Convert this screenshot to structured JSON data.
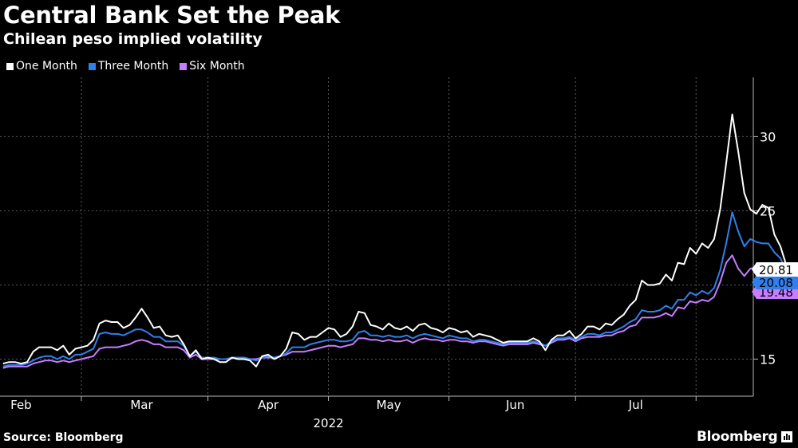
{
  "title": "Central Bank Set the Peak",
  "subtitle": "Chilean peso implied volatility",
  "source": "Source: Bloomberg",
  "brand": "Bloomberg",
  "colors": {
    "background": "#000000",
    "grid": "#5a5a5a",
    "one_month": "#ffffff",
    "three_month": "#2f80ed",
    "six_month": "#c77dff"
  },
  "chart_data": {
    "type": "line",
    "title": "Central Bank Set the Peak",
    "subtitle": "Chilean peso implied volatility",
    "xlabel": "2022",
    "ylabel": "",
    "ylim": [
      12.5,
      34
    ],
    "yticks": [
      15,
      20,
      25,
      30
    ],
    "ytick_labels": [
      "15",
      "20",
      "25",
      "30"
    ],
    "xticks": [
      3,
      23,
      44,
      64,
      85,
      105
    ],
    "xtick_labels": [
      "Feb",
      "Mar",
      "Apr",
      "May",
      "Jun",
      "Jul"
    ],
    "xlim": [
      -0.5,
      124.5
    ],
    "year_label": "2022",
    "legend_position": "top-left",
    "series": [
      {
        "name": "One Month",
        "color": "#ffffff",
        "last_label": "20.81",
        "values": [
          14.7,
          14.8,
          14.8,
          14.7,
          14.8,
          15.5,
          15.8,
          15.8,
          15.8,
          15.6,
          15.9,
          15.3,
          15.7,
          15.8,
          15.9,
          16.3,
          17.4,
          17.6,
          17.5,
          17.5,
          17.1,
          17.3,
          17.8,
          18.4,
          17.8,
          17.1,
          17.2,
          16.6,
          16.5,
          16.6,
          16.0,
          15.2,
          15.6,
          15.0,
          15.1,
          15.0,
          14.8,
          14.8,
          15.1,
          15.0,
          15.0,
          14.9,
          14.5,
          15.2,
          15.3,
          15.0,
          15.2,
          15.7,
          16.8,
          16.7,
          16.3,
          16.5,
          16.5,
          16.8,
          17.1,
          17.0,
          16.5,
          16.7,
          17.2,
          18.2,
          18.1,
          17.3,
          17.2,
          17.0,
          17.4,
          17.1,
          17.0,
          17.2,
          16.9,
          17.3,
          17.4,
          17.1,
          17.0,
          16.8,
          17.1,
          17.0,
          16.8,
          16.9,
          16.5,
          16.7,
          16.6,
          16.5,
          16.3,
          16.1,
          16.2,
          16.2,
          16.2,
          16.2,
          16.4,
          16.2,
          15.6,
          16.3,
          16.6,
          16.6,
          16.9,
          16.4,
          16.7,
          17.2,
          17.2,
          17.0,
          17.4,
          17.3,
          17.7,
          18.0,
          18.6,
          19.0,
          20.3,
          20.0,
          20.0,
          20.1,
          20.7,
          20.3,
          21.5,
          21.4,
          22.5,
          22.1,
          22.8,
          22.5,
          23.1,
          25.1,
          28.2,
          31.5,
          29.0,
          26.2,
          25.1,
          24.8,
          25.4,
          25.2,
          23.4,
          22.6,
          21.3,
          21.2,
          20.7,
          20.8
        ]
      },
      {
        "name": "Three Month",
        "color": "#2f80ed",
        "last_label": "20.08",
        "values": [
          14.5,
          14.6,
          14.6,
          14.6,
          14.7,
          14.9,
          15.1,
          15.2,
          15.2,
          15.0,
          15.2,
          15.0,
          15.3,
          15.3,
          15.5,
          15.7,
          16.7,
          16.8,
          16.7,
          16.7,
          16.6,
          16.8,
          17.0,
          17.0,
          16.8,
          16.5,
          16.5,
          16.2,
          16.2,
          16.2,
          15.9,
          15.2,
          15.5,
          15.1,
          15.1,
          15.1,
          15.0,
          15.0,
          15.1,
          15.1,
          15.1,
          15.0,
          14.9,
          15.1,
          15.2,
          15.1,
          15.2,
          15.4,
          15.8,
          15.8,
          15.8,
          16.0,
          16.1,
          16.2,
          16.3,
          16.3,
          16.2,
          16.2,
          16.3,
          16.8,
          16.9,
          16.6,
          16.6,
          16.5,
          16.6,
          16.5,
          16.5,
          16.6,
          16.4,
          16.6,
          16.7,
          16.6,
          16.5,
          16.4,
          16.6,
          16.5,
          16.4,
          16.4,
          16.2,
          16.3,
          16.3,
          16.2,
          16.1,
          16.0,
          16.1,
          16.1,
          16.1,
          16.1,
          16.2,
          16.1,
          15.9,
          16.2,
          16.4,
          16.4,
          16.5,
          16.3,
          16.5,
          16.7,
          16.7,
          16.6,
          16.8,
          16.8,
          17.0,
          17.2,
          17.5,
          17.7,
          18.3,
          18.2,
          18.2,
          18.3,
          18.6,
          18.4,
          19.0,
          19.0,
          19.5,
          19.3,
          19.6,
          19.4,
          19.8,
          21.0,
          22.8,
          24.9,
          23.6,
          22.6,
          23.1,
          22.9,
          22.8,
          22.8,
          22.2,
          21.8,
          20.9,
          20.7,
          20.0,
          20.1
        ]
      },
      {
        "name": "Six Month",
        "color": "#c77dff",
        "last_label": "19.48",
        "values": [
          14.4,
          14.5,
          14.5,
          14.5,
          14.5,
          14.7,
          14.8,
          14.9,
          14.9,
          14.8,
          14.9,
          14.8,
          14.9,
          15.0,
          15.1,
          15.2,
          15.7,
          15.8,
          15.8,
          15.8,
          15.9,
          16.0,
          16.2,
          16.3,
          16.2,
          16.0,
          16.0,
          15.8,
          15.8,
          15.8,
          15.6,
          15.1,
          15.3,
          15.0,
          15.0,
          15.0,
          15.0,
          15.0,
          15.1,
          15.1,
          15.1,
          15.0,
          15.0,
          15.1,
          15.1,
          15.1,
          15.2,
          15.3,
          15.5,
          15.5,
          15.5,
          15.6,
          15.7,
          15.8,
          15.9,
          15.9,
          15.8,
          15.9,
          16.0,
          16.4,
          16.4,
          16.3,
          16.3,
          16.2,
          16.3,
          16.2,
          16.2,
          16.3,
          16.1,
          16.3,
          16.4,
          16.3,
          16.3,
          16.2,
          16.3,
          16.3,
          16.2,
          16.2,
          16.1,
          16.2,
          16.2,
          16.1,
          16.0,
          15.9,
          16.0,
          16.0,
          16.0,
          16.0,
          16.1,
          16.0,
          15.9,
          16.1,
          16.3,
          16.3,
          16.4,
          16.2,
          16.4,
          16.5,
          16.5,
          16.5,
          16.6,
          16.6,
          16.8,
          16.9,
          17.2,
          17.3,
          17.8,
          17.8,
          17.8,
          17.9,
          18.1,
          17.9,
          18.5,
          18.4,
          18.9,
          18.8,
          19.0,
          18.9,
          19.2,
          20.2,
          21.5,
          22.0,
          21.1,
          20.6,
          21.1,
          21.2,
          21.1,
          20.9,
          20.5,
          20.0,
          19.6,
          19.3,
          19.2,
          19.5
        ]
      }
    ]
  }
}
